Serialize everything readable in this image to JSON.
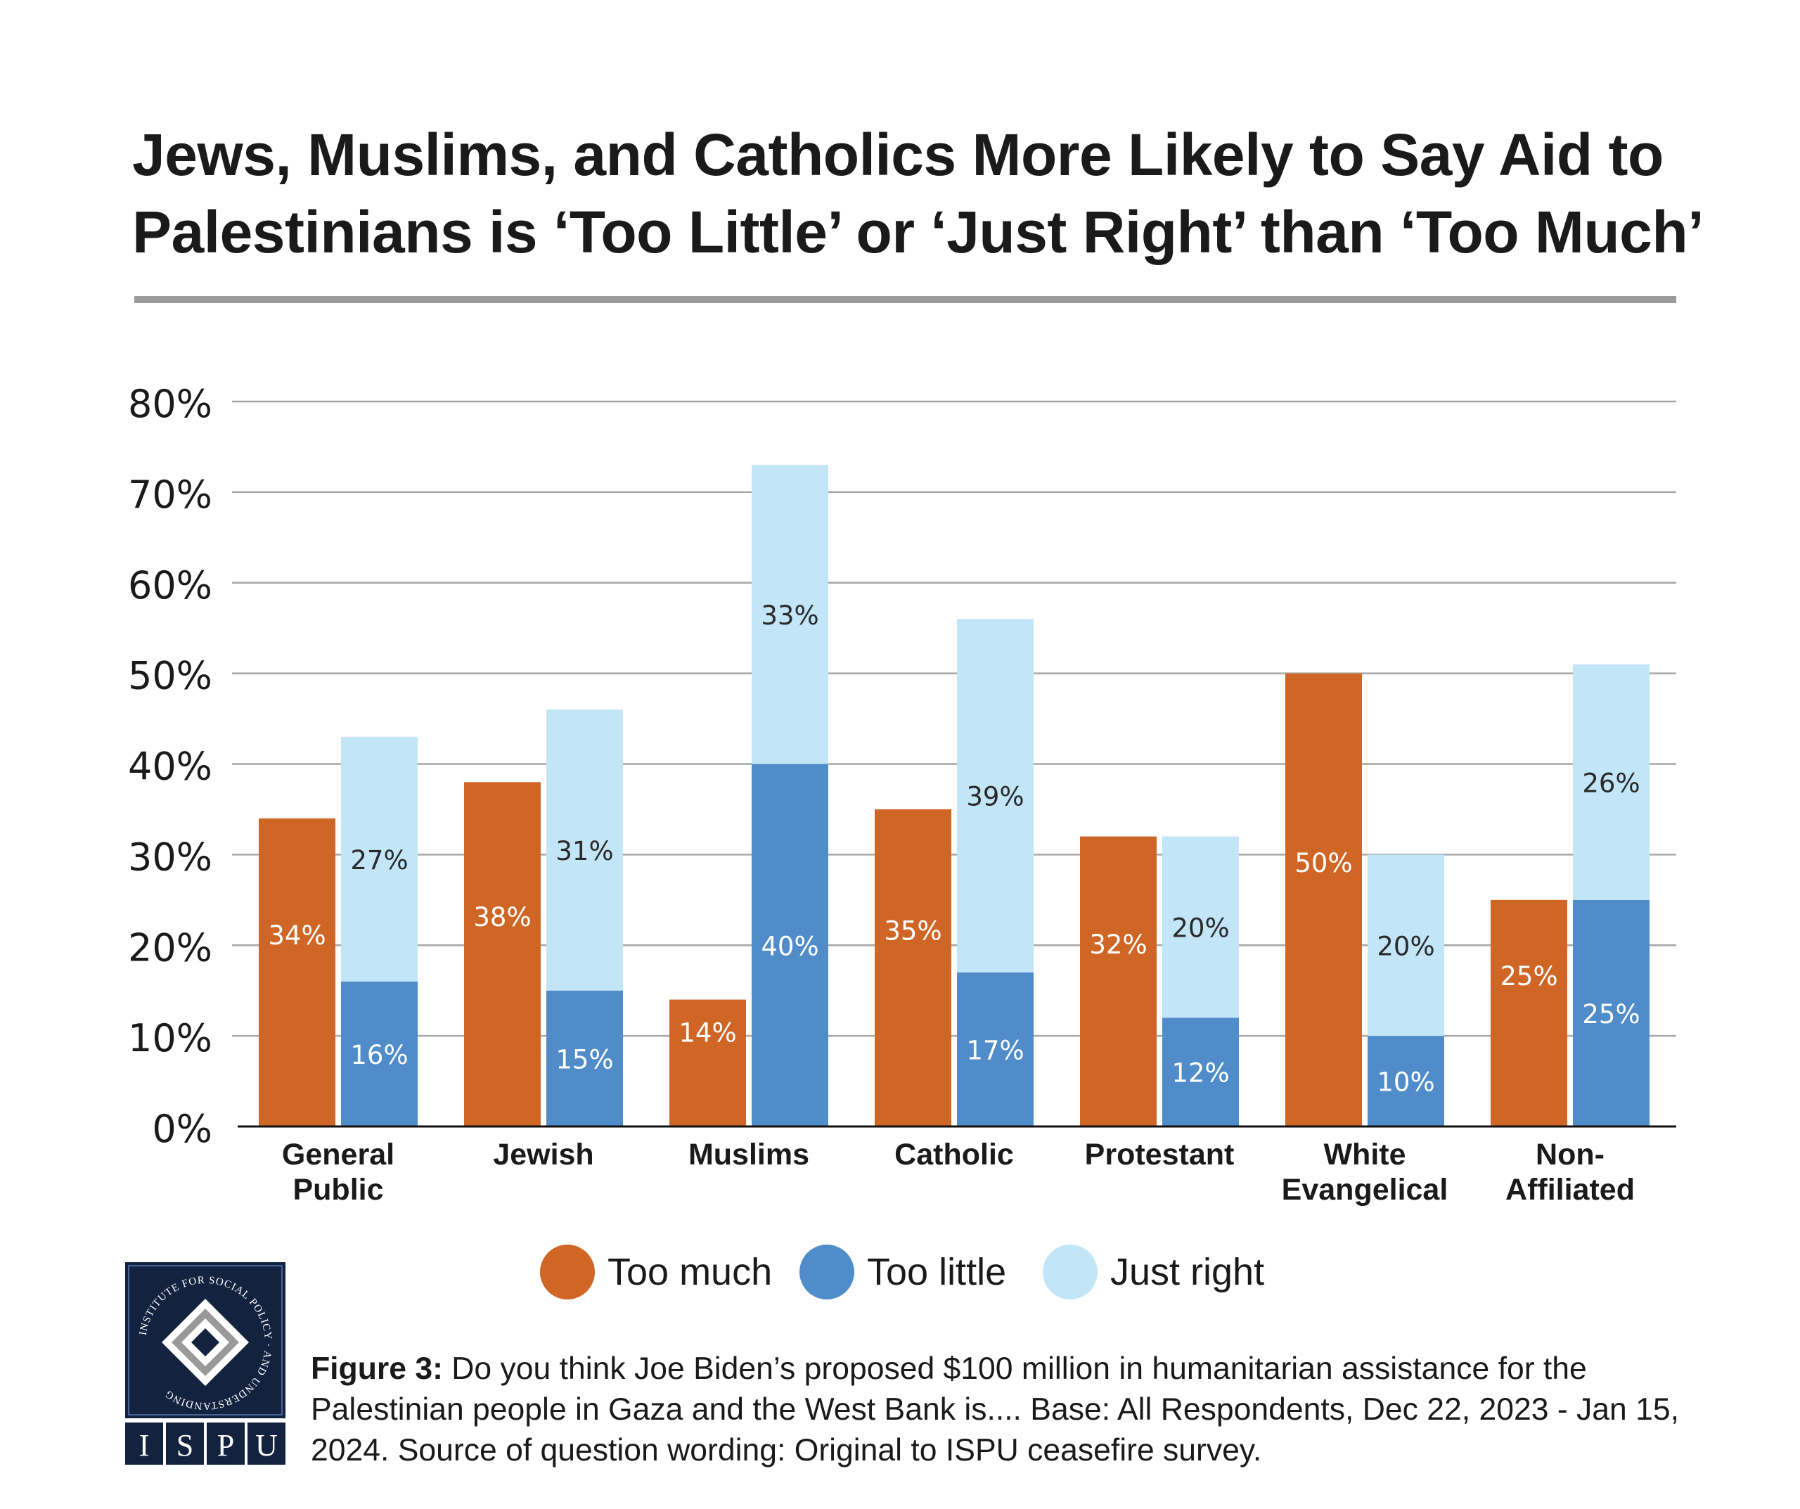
{
  "title_line1": "Jews, Muslims, and Catholics More Likely to Say Aid to",
  "title_line2": "Palestinians is ‘Too Little’ or ‘Just Right’ than ‘Too Much’",
  "chart_data": {
    "type": "bar",
    "layout": "grouped bars; 'Too little' and 'Just right' stacked in one column",
    "categories": [
      [
        "General",
        "Public"
      ],
      [
        "Jewish"
      ],
      [
        "Muslims"
      ],
      [
        "Catholic"
      ],
      [
        "Protestant"
      ],
      [
        "White",
        "Evangelical"
      ],
      [
        "Non-",
        "Affiliated"
      ]
    ],
    "series": [
      {
        "name": "Too much",
        "color": "#cf6626",
        "values": [
          34,
          38,
          14,
          35,
          32,
          50,
          25
        ]
      },
      {
        "name": "Too little",
        "color": "#4f8cc9",
        "values": [
          16,
          15,
          40,
          17,
          12,
          10,
          25
        ]
      },
      {
        "name": "Just right",
        "color": "#c2e5f8",
        "values": [
          27,
          31,
          33,
          39,
          20,
          20,
          26
        ]
      }
    ],
    "ylim": [
      0,
      80
    ],
    "yticks": [
      "0%",
      "10%",
      "20%",
      "30%",
      "40%",
      "50%",
      "60%",
      "70%",
      "80%"
    ],
    "grid": true,
    "legend_position": "bottom"
  },
  "legend": {
    "too_much": "Too much",
    "too_little": "Too little",
    "just_right": "Just right"
  },
  "logo": {
    "text": "INSTITUTE FOR SOCIAL POLICY AND UNDERSTANDING",
    "letters": [
      "I",
      "S",
      "P",
      "U"
    ]
  },
  "caption": {
    "label": "Figure 3:",
    "text": " Do you think Joe Biden’s proposed $100 million in humanitarian assistance for the Palestinian people in Gaza and the West Bank is.... Base: All Respondents, Dec 22, 2023 - Jan 15, 2024. Source of question wording: Original to ISPU ceasefire survey."
  }
}
